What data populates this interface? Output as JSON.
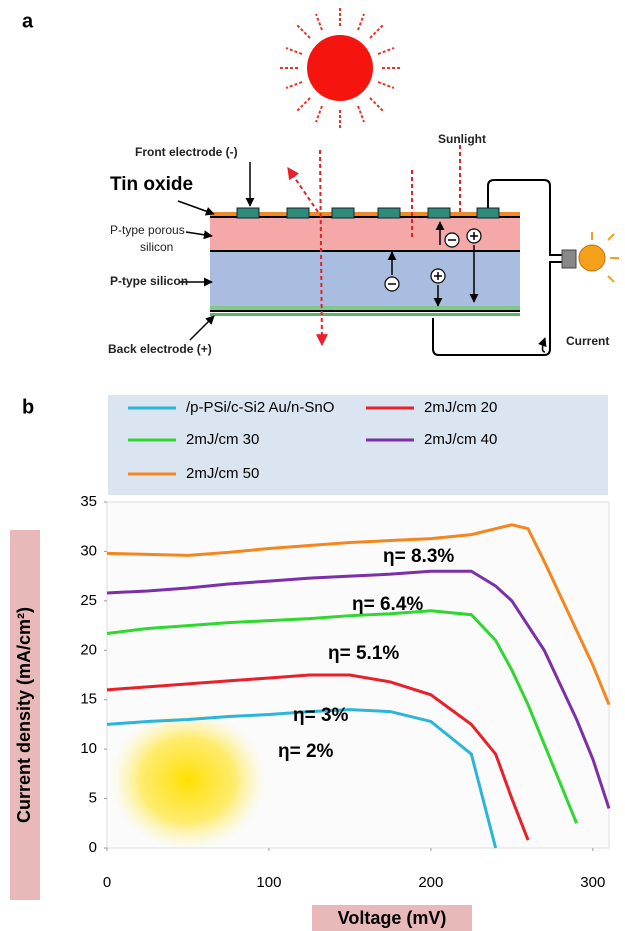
{
  "panel_a": {
    "label": "a",
    "front_electrode": "Front electrode (-)",
    "tin_oxide": "Tin oxide",
    "porous_silicon": [
      "P-type porous",
      "silicon"
    ],
    "p_silicon": "P-type silicon",
    "back_electrode": "Back electrode (+)",
    "sunlight": "Sunlight",
    "current": "Current"
  },
  "chart_data": {
    "type": "line",
    "panel_label": "b",
    "x_label": "Voltage (mV)",
    "y_label": "Current density (mA/cm²)",
    "x": [
      0,
      25,
      50,
      75,
      100,
      125,
      150,
      175,
      200,
      225,
      240,
      250,
      260,
      270,
      280,
      290,
      300,
      310
    ],
    "series": [
      {
        "name": "/p-PSi/c-Si2 Au/n-SnO",
        "color": "#2bb5d8",
        "values": [
          12.5,
          12.8,
          13,
          13.3,
          13.5,
          13.8,
          14,
          13.8,
          12.8,
          9.5,
          0,
          null,
          null,
          null,
          null,
          null,
          null,
          null
        ]
      },
      {
        "name": "2mJ/cm 20",
        "color": "#e8202a",
        "values": [
          16,
          16.3,
          16.6,
          16.9,
          17.2,
          17.5,
          17.5,
          16.8,
          15.5,
          12.5,
          9.5,
          5,
          0.8,
          null,
          null,
          null,
          null,
          null
        ]
      },
      {
        "name": "2mJ/cm 30",
        "color": "#2ed82e",
        "values": [
          21.7,
          22.2,
          22.5,
          22.8,
          23,
          23.2,
          23.5,
          23.7,
          24,
          23.6,
          21,
          18,
          14.5,
          10.5,
          6.5,
          2.5,
          null,
          null
        ]
      },
      {
        "name": "2mJ/cm 40",
        "color": "#7b2fa8",
        "values": [
          25.8,
          26,
          26.3,
          26.7,
          27,
          27.3,
          27.5,
          27.7,
          28,
          28,
          26.5,
          25,
          22.5,
          20,
          16.5,
          13,
          9,
          4
        ]
      },
      {
        "name": "2mJ/cm 50",
        "color": "#f5861f",
        "values": [
          29.8,
          29.7,
          29.6,
          29.9,
          30.3,
          30.6,
          30.9,
          31.1,
          31.3,
          31.7,
          32.3,
          32.7,
          32.3,
          29,
          25.5,
          22,
          18.5,
          14.5
        ]
      }
    ],
    "annotations": [
      "η= 8.3%",
      "η= 6.4%",
      "η= 5.1%",
      "η= 3%",
      "η= 2%"
    ],
    "xlim": [
      0,
      310
    ],
    "xticks": [
      0,
      100,
      200,
      300
    ],
    "ylim": [
      0,
      35
    ],
    "yticks": [
      0,
      5,
      10,
      15,
      20,
      25,
      30,
      35
    ]
  }
}
